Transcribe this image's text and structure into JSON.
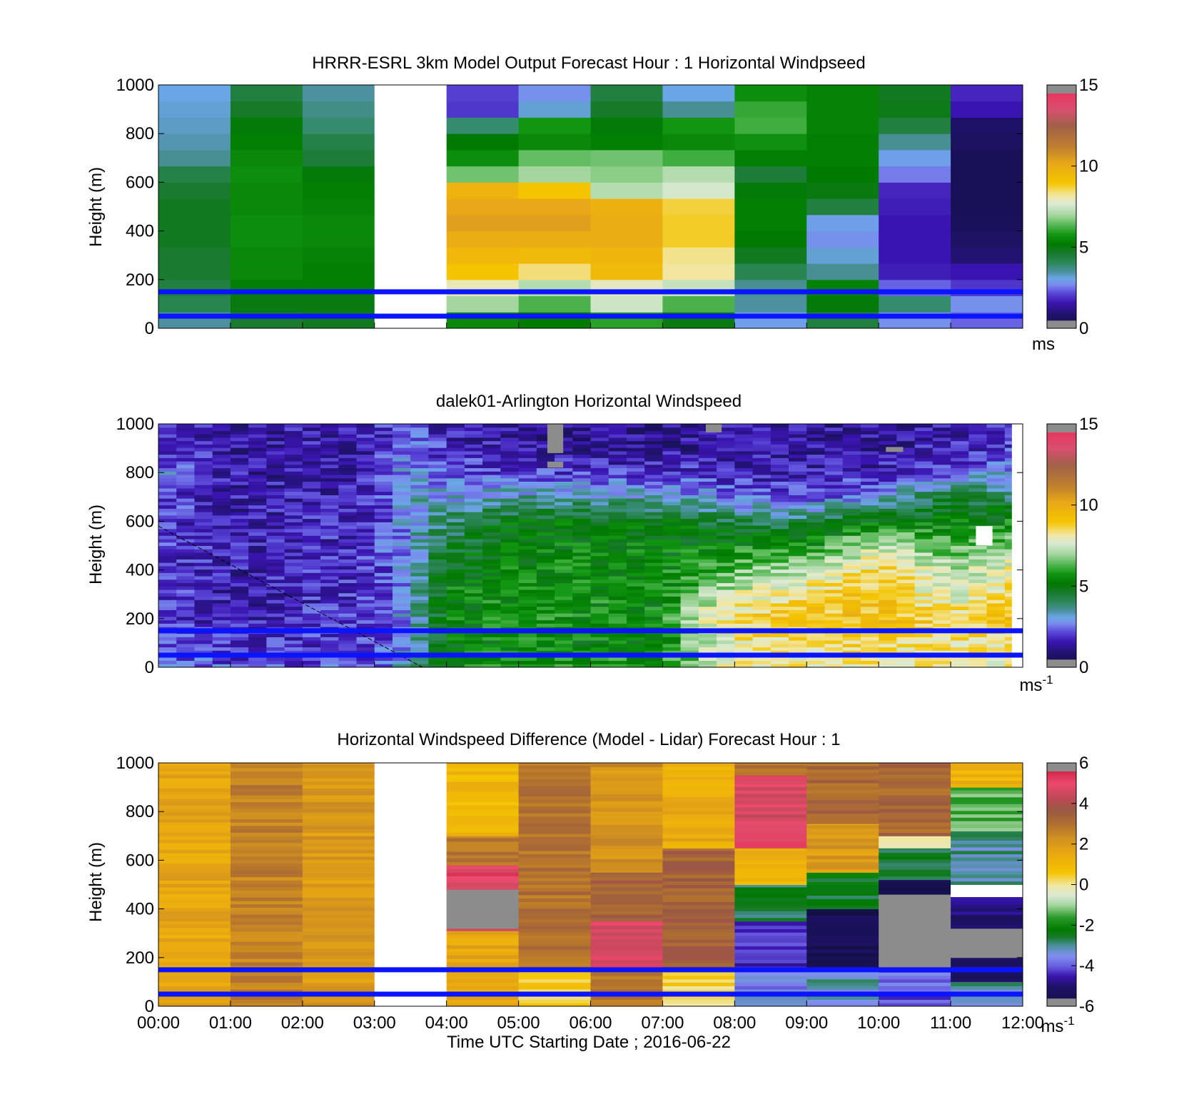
{
  "figure": {
    "x_ticks": [
      "00:00",
      "01:00",
      "02:00",
      "03:00",
      "04:00",
      "05:00",
      "06:00",
      "07:00",
      "08:00",
      "09:00",
      "10:00",
      "11:00",
      "12:00"
    ],
    "xlabel": "Time UTC  Starting Date ; 2016-06-22",
    "line_color": "#0a14ff"
  },
  "chart_data": [
    {
      "type": "heatmap",
      "title": "HRRR-ESRL 3km Model Output   Forecast Hour : 1 Horizontal Windpseed",
      "xlabel": "",
      "ylabel": "Height (m)",
      "xlim": [
        "00:00",
        "12:00"
      ],
      "ylim": [
        0,
        1000
      ],
      "y_ticks": [
        0,
        200,
        400,
        600,
        800,
        1000
      ],
      "colorbar": {
        "range": [
          0,
          15
        ],
        "ticks": [
          0,
          5,
          10,
          15
        ],
        "unit_label": "ms",
        "unit_superscript": ""
      },
      "reference_heights_m": [
        150,
        50
      ],
      "columns_hourly_values_bottom_to_top": [
        [
          3.5,
          4.2,
          4.4,
          4.6,
          4.6,
          4.8,
          4.8,
          4.8,
          4.6,
          4.3,
          3.6,
          3.4,
          3.3,
          3.2,
          3.1
        ],
        [
          4.6,
          5.0,
          5.3,
          5.5,
          5.5,
          5.6,
          5.6,
          5.5,
          5.5,
          5.6,
          5.5,
          5.3,
          5.1,
          4.7,
          4.4
        ],
        [
          4.8,
          5.0,
          5.3,
          5.3,
          5.4,
          5.5,
          5.5,
          5.4,
          5.3,
          5.1,
          4.5,
          4.3,
          3.9,
          3.7,
          3.5
        ],
        null,
        [
          5.5,
          7.0,
          8.0,
          9.0,
          9.5,
          10.0,
          10.4,
          10.2,
          9.7,
          6.6,
          5.6,
          5.2,
          3.9,
          2.0,
          2.1
        ],
        [
          5.2,
          6.3,
          7.2,
          8.4,
          9.4,
          10.0,
          10.4,
          10.2,
          9.0,
          7.0,
          6.5,
          5.5,
          5.8,
          3.2,
          2.8
        ],
        [
          6.0,
          7.5,
          7.9,
          9.4,
          9.6,
          10.0,
          10.0,
          9.8,
          7.2,
          6.8,
          6.6,
          5.3,
          5.1,
          4.7,
          4.4
        ],
        [
          5.0,
          6.3,
          7.4,
          8.2,
          8.3,
          8.8,
          8.8,
          8.7,
          7.6,
          7.2,
          6.2,
          5.5,
          5.8,
          3.6,
          3.1
        ],
        [
          3.0,
          3.5,
          3.6,
          4.2,
          4.8,
          5.2,
          5.3,
          5.3,
          5.1,
          4.5,
          5.3,
          5.7,
          6.2,
          6.1,
          5.6
        ],
        [
          4.4,
          5.1,
          5.4,
          3.6,
          3.2,
          2.8,
          3.0,
          4.4,
          5.0,
          5.2,
          5.3,
          5.3,
          5.4,
          5.4,
          5.4
        ],
        [
          2.8,
          3.9,
          2.4,
          1.7,
          1.6,
          1.6,
          1.6,
          1.7,
          1.8,
          2.6,
          3.0,
          3.6,
          4.4,
          4.9,
          4.8
        ],
        [
          2.4,
          2.8,
          2.0,
          1.6,
          0.9,
          0.7,
          0.5,
          0.4,
          0.4,
          0.4,
          0.4,
          0.6,
          0.8,
          1.6,
          1.8
        ]
      ]
    },
    {
      "type": "heatmap",
      "title": "dalek01-Arlington  Horizontal Windspeed",
      "xlabel": "",
      "ylabel": "Height (m)",
      "xlim": [
        "00:00",
        "12:00"
      ],
      "ylim": [
        0,
        1000
      ],
      "y_ticks": [
        0,
        200,
        400,
        600,
        800,
        1000
      ],
      "colorbar": {
        "range": [
          0,
          15
        ],
        "ticks": [
          0,
          5,
          10,
          15
        ],
        "unit_label": "ms",
        "unit_superscript": "-1"
      },
      "reference_heights_m": [
        150,
        50
      ],
      "diagonal_line": {
        "from": [
          "00:00",
          580
        ],
        "to": [
          "03:40",
          0
        ]
      },
      "profile_times_h": [
        0,
        1,
        2,
        3,
        3.5,
        4,
        5,
        6,
        7,
        7.5,
        8,
        9,
        10,
        11,
        11.85
      ],
      "profiles_at_heights_m": [
        0,
        100,
        200,
        300,
        400,
        500,
        600,
        700,
        800,
        900,
        1000
      ],
      "profiles": [
        [
          3.0,
          2.2,
          2.2,
          2.0,
          1.9,
          2.0,
          2.1,
          2.3,
          2.8,
          2.0,
          1.8
        ],
        [
          2.2,
          1.8,
          1.6,
          1.6,
          1.6,
          1.6,
          1.6,
          1.5,
          1.5,
          1.5,
          1.5
        ],
        [
          2.2,
          1.9,
          1.8,
          1.8,
          1.8,
          1.7,
          1.7,
          1.6,
          1.6,
          1.6,
          1.6
        ],
        [
          2.4,
          2.1,
          2.0,
          2.0,
          2.0,
          1.9,
          1.9,
          1.8,
          1.7,
          1.7,
          1.7
        ],
        [
          3.3,
          3.0,
          3.0,
          3.0,
          3.0,
          3.0,
          3.1,
          3.2,
          3.1,
          2.6,
          2.2
        ],
        [
          5.5,
          5.2,
          5.3,
          5.5,
          5.0,
          4.5,
          4.0,
          3.0,
          2.2,
          1.8,
          1.6
        ],
        [
          6.0,
          5.4,
          5.6,
          5.6,
          5.5,
          5.4,
          5.0,
          3.5,
          2.2,
          1.4,
          1.2
        ],
        [
          6.0,
          5.4,
          5.6,
          5.6,
          5.5,
          5.3,
          5.0,
          3.5,
          2.0,
          1.3,
          1.1
        ],
        [
          6.0,
          5.4,
          5.4,
          5.5,
          5.5,
          5.2,
          4.8,
          3.4,
          2.0,
          1.3,
          1.2
        ],
        [
          7.0,
          7.0,
          7.6,
          6.6,
          5.8,
          5.4,
          4.8,
          3.0,
          1.9,
          1.4,
          1.3
        ],
        [
          8.0,
          8.2,
          8.5,
          7.6,
          6.6,
          5.5,
          4.2,
          2.4,
          1.7,
          1.4,
          1.4
        ],
        [
          8.2,
          8.5,
          9.0,
          8.6,
          7.2,
          5.5,
          4.2,
          2.2,
          1.6,
          1.4,
          1.4
        ],
        [
          8.2,
          8.6,
          9.2,
          9.2,
          8.6,
          7.5,
          5.5,
          3.0,
          1.8,
          1.3,
          1.3
        ],
        [
          8.0,
          8.2,
          8.8,
          7.5,
          7.2,
          6.2,
          5.2,
          4.5,
          2.3,
          1.7,
          1.5
        ],
        [
          8.0,
          8.4,
          9.2,
          8.5,
          8.0,
          6.8,
          5.5,
          4.0,
          3.0,
          2.0,
          1.7
        ]
      ],
      "missing_cells": [
        {
          "t0": 5.4,
          "t1": 5.62,
          "z0": 880,
          "z1": 1000
        },
        {
          "t0": 5.4,
          "t1": 5.62,
          "z0": 820,
          "z1": 845
        },
        {
          "t0": 7.6,
          "t1": 7.82,
          "z0": 965,
          "z1": 1000
        },
        {
          "t0": 10.1,
          "t1": 10.34,
          "z0": 885,
          "z1": 905
        },
        {
          "t0": 11.35,
          "t1": 11.58,
          "z0": 500,
          "z1": 580
        },
        {
          "t0": 11.85,
          "t1": 12.0,
          "z0": 0,
          "z1": 1000
        }
      ]
    },
    {
      "type": "heatmap",
      "title": "Horizontal Windspeed Difference (Model - Lidar) Forecast Hour : 1",
      "xlabel": "Time UTC  Starting Date ; 2016-06-22",
      "ylabel": "Height (m)",
      "xlim": [
        "00:00",
        "12:00"
      ],
      "ylim": [
        0,
        1000
      ],
      "y_ticks": [
        0,
        200,
        400,
        600,
        800,
        1000
      ],
      "colorbar": {
        "range": [
          -6,
          6
        ],
        "ticks": [
          -6,
          -4,
          -2,
          0,
          2,
          4,
          6
        ],
        "unit_label": "ms",
        "unit_superscript": "-1"
      },
      "reference_heights_m": [
        150,
        50
      ],
      "column_segments": [
        [
          {
            "z0": 0,
            "z1": 1000,
            "v": 1.6
          }
        ],
        [
          {
            "z0": 0,
            "z1": 1000,
            "v": 2.6
          }
        ],
        [
          {
            "z0": 0,
            "z1": 1000,
            "v": 2.0
          }
        ],
        null,
        [
          {
            "z0": 0,
            "z1": 310,
            "v": 1.6
          },
          {
            "z0": 310,
            "z1": 320,
            "v": 4.5
          },
          {
            "z0": 320,
            "z1": 480,
            "v": "missing"
          },
          {
            "z0": 480,
            "z1": 580,
            "v": 5.0
          },
          {
            "z0": 580,
            "z1": 700,
            "v": 2.8
          },
          {
            "z0": 700,
            "z1": 1000,
            "v": 1.0
          }
        ],
        [
          {
            "z0": 0,
            "z1": 150,
            "v": 0.4
          },
          {
            "z0": 150,
            "z1": 1000,
            "v": 3.0
          }
        ],
        [
          {
            "z0": 0,
            "z1": 150,
            "v": 2.8
          },
          {
            "z0": 150,
            "z1": 350,
            "v": 4.8
          },
          {
            "z0": 350,
            "z1": 550,
            "v": 3.4
          },
          {
            "z0": 550,
            "z1": 1000,
            "v": 2.2
          }
        ],
        [
          {
            "z0": 0,
            "z1": 150,
            "v": 0.4
          },
          {
            "z0": 150,
            "z1": 650,
            "v": 3.4
          },
          {
            "z0": 650,
            "z1": 1000,
            "v": 1.4
          }
        ],
        [
          {
            "z0": 0,
            "z1": 150,
            "v": -3.6
          },
          {
            "z0": 150,
            "z1": 350,
            "v": -4.3
          },
          {
            "z0": 350,
            "z1": 500,
            "v": -2.6
          },
          {
            "z0": 500,
            "z1": 650,
            "v": 1.2
          },
          {
            "z0": 650,
            "z1": 950,
            "v": 4.8
          },
          {
            "z0": 950,
            "z1": 1000,
            "v": 3.0
          }
        ],
        [
          {
            "z0": 0,
            "z1": 150,
            "v": -3.2
          },
          {
            "z0": 150,
            "z1": 400,
            "v": -5.6
          },
          {
            "z0": 400,
            "z1": 550,
            "v": -2.4
          },
          {
            "z0": 550,
            "z1": 750,
            "v": 2.0
          },
          {
            "z0": 750,
            "z1": 1000,
            "v": 3.2
          }
        ],
        [
          {
            "z0": 0,
            "z1": 150,
            "v": -4.0
          },
          {
            "z0": 150,
            "z1": 460,
            "v": "missing"
          },
          {
            "z0": 460,
            "z1": 520,
            "v": -5.5
          },
          {
            "z0": 520,
            "z1": 650,
            "v": -2.6
          },
          {
            "z0": 650,
            "z1": 700,
            "v": 0.2
          },
          {
            "z0": 700,
            "z1": 1000,
            "v": 3.2
          }
        ],
        [
          {
            "z0": 0,
            "z1": 100,
            "v": -3.0
          },
          {
            "z0": 100,
            "z1": 200,
            "v": -5.4
          },
          {
            "z0": 200,
            "z1": 320,
            "v": "missing"
          },
          {
            "z0": 320,
            "z1": 450,
            "v": -5.0
          },
          {
            "z0": 450,
            "z1": 500,
            "v": "blank"
          },
          {
            "z0": 500,
            "z1": 720,
            "v": -3.0
          },
          {
            "z0": 720,
            "z1": 900,
            "v": -1.4
          },
          {
            "z0": 900,
            "z1": 1000,
            "v": 1.2
          }
        ]
      ]
    }
  ]
}
